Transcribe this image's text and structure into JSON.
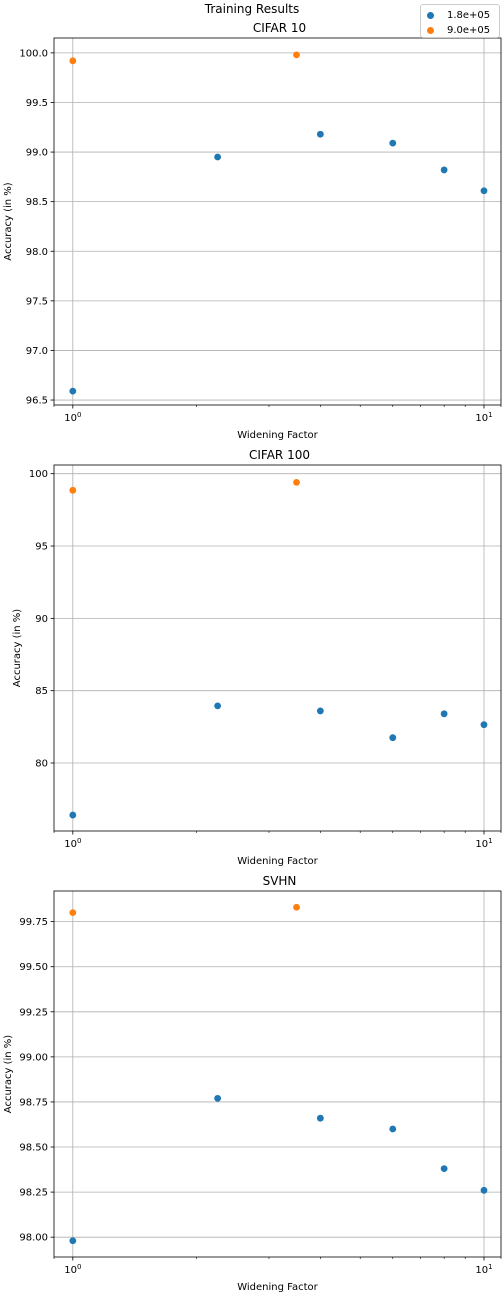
{
  "suptitle": "Training Results",
  "legend": [
    {
      "label": "1.8e+05",
      "color": "#1f77b4"
    },
    {
      "label": "9.0e+05",
      "color": "#ff7f0e"
    }
  ],
  "chart_data": [
    {
      "type": "scatter",
      "title": "CIFAR 10",
      "xlabel": "Widening Factor",
      "ylabel": "Accuracy (in %)",
      "xscale": "log",
      "xlim": [
        0.9,
        11
      ],
      "ylim": [
        96.45,
        100.15
      ],
      "xticks": [
        {
          "value": 1,
          "label": "10^0"
        },
        {
          "value": 10,
          "label": "10^1"
        }
      ],
      "yticks": [
        96.5,
        97.0,
        97.5,
        98.0,
        98.5,
        99.0,
        99.5,
        100.0
      ],
      "ytick_labels": [
        "96.5",
        "97.0",
        "97.5",
        "98.0",
        "98.5",
        "99.0",
        "99.5",
        "100.0"
      ],
      "grid": true,
      "series": [
        {
          "name": "1.8e+05",
          "color": "#1f77b4",
          "x": [
            1,
            2.25,
            4,
            6,
            8,
            10
          ],
          "y": [
            96.59,
            98.95,
            99.18,
            99.09,
            98.82,
            98.61
          ]
        },
        {
          "name": "9.0e+05",
          "color": "#ff7f0e",
          "x": [
            1,
            3.5
          ],
          "y": [
            99.92,
            99.98
          ]
        }
      ]
    },
    {
      "type": "scatter",
      "title": "CIFAR 100",
      "xlabel": "Widening Factor",
      "ylabel": "Accuracy (in %)",
      "xscale": "log",
      "xlim": [
        0.9,
        11
      ],
      "ylim": [
        75.3,
        100.6
      ],
      "xticks": [
        {
          "value": 1,
          "label": "10^0"
        },
        {
          "value": 10,
          "label": "10^1"
        }
      ],
      "yticks": [
        80,
        85,
        90,
        95,
        100
      ],
      "ytick_labels": [
        "80",
        "85",
        "90",
        "95",
        "100"
      ],
      "grid": true,
      "series": [
        {
          "name": "1.8e+05",
          "color": "#1f77b4",
          "x": [
            1,
            2.25,
            4,
            6,
            8,
            10
          ],
          "y": [
            76.4,
            83.95,
            83.6,
            81.75,
            83.4,
            82.65
          ]
        },
        {
          "name": "9.0e+05",
          "color": "#ff7f0e",
          "x": [
            1,
            3.5
          ],
          "y": [
            98.85,
            99.4
          ]
        }
      ]
    },
    {
      "type": "scatter",
      "title": "SVHN",
      "xlabel": "Widening Factor",
      "ylabel": "Accuracy (in %)",
      "xscale": "log",
      "xlim": [
        0.9,
        11
      ],
      "ylim": [
        97.89,
        99.92
      ],
      "xticks": [
        {
          "value": 1,
          "label": "10^0"
        },
        {
          "value": 10,
          "label": "10^1"
        }
      ],
      "yticks": [
        98.0,
        98.25,
        98.5,
        98.75,
        99.0,
        99.25,
        99.5,
        99.75
      ],
      "ytick_labels": [
        "98.00",
        "98.25",
        "98.50",
        "98.75",
        "99.00",
        "99.25",
        "99.50",
        "99.75"
      ],
      "grid": true,
      "series": [
        {
          "name": "1.8e+05",
          "color": "#1f77b4",
          "x": [
            1,
            2.25,
            4,
            6,
            8,
            10
          ],
          "y": [
            97.98,
            98.77,
            98.66,
            98.6,
            98.38,
            98.26
          ]
        },
        {
          "name": "9.0e+05",
          "color": "#ff7f0e",
          "x": [
            1,
            3.5
          ],
          "y": [
            99.8,
            99.83
          ]
        }
      ]
    }
  ]
}
